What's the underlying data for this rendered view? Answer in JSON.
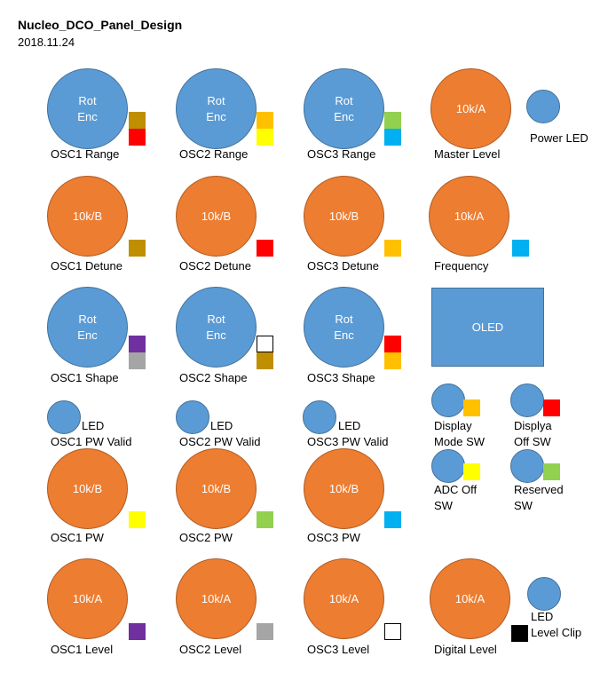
{
  "header": {
    "title": "Nucleo_DCO_Panel_Design",
    "date": "2018.11.24"
  },
  "colors": {
    "gold": "#bf8f00",
    "red": "#ff0000",
    "orange_sq": "#ffc000",
    "yellow": "#ffff00",
    "green": "#92d050",
    "cyan": "#00b0f0",
    "purple": "#7030a0",
    "gray": "#a5a5a5",
    "white": "#ffffff",
    "black": "#000000",
    "knob_blue": "#5b9bd5",
    "knob_orange": "#ed7d31"
  },
  "rows": {
    "range": {
      "osc1": {
        "knob": "Rot\nEnc",
        "label": "OSC1  Range"
      },
      "osc2": {
        "knob": "Rot\nEnc",
        "label": "OSC2  Range"
      },
      "osc3": {
        "knob": "Rot\nEnc",
        "label": "OSC3  Range"
      },
      "master": {
        "knob": "10k/A",
        "label": "Master Level"
      },
      "power_led": {
        "label": "Power LED"
      }
    },
    "detune": {
      "osc1": {
        "knob": "10k/B",
        "label": "OSC1  Detune"
      },
      "osc2": {
        "knob": "10k/B",
        "label": "OSC2  Detune"
      },
      "osc3": {
        "knob": "10k/B",
        "label": "OSC3  Detune"
      },
      "frequency": {
        "knob": "10k/A",
        "label": "Frequency"
      }
    },
    "shape": {
      "osc1": {
        "knob": "Rot\nEnc",
        "label": "OSC1  Shape"
      },
      "osc2": {
        "knob": "Rot\nEnc",
        "label": "OSC2  Shape"
      },
      "osc3": {
        "knob": "Rot\nEnc",
        "label": "OSC3  Shape"
      },
      "oled": {
        "label": "OLED"
      }
    },
    "pw_valid": {
      "osc1": {
        "led": "LED",
        "label": "OSC1  PW Valid"
      },
      "osc2": {
        "led": "LED",
        "label": "OSC2  PW Valid"
      },
      "osc3": {
        "led": "LED",
        "label": "OSC3  PW Valid"
      }
    },
    "switches": {
      "display_mode": {
        "line1": "Display",
        "line2": "Mode SW"
      },
      "display_off": {
        "line1": "Displya",
        "line2": "Off SW"
      },
      "adc_off": {
        "line1": "ADC  Off",
        "line2": "SW"
      },
      "reserved": {
        "line1": "Reserved",
        "line2": "SW"
      }
    },
    "pw": {
      "osc1": {
        "knob": "10k/B",
        "label": "OSC1  PW"
      },
      "osc2": {
        "knob": "10k/B",
        "label": "OSC2  PW"
      },
      "osc3": {
        "knob": "10k/B",
        "label": "OSC3  PW"
      }
    },
    "level": {
      "osc1": {
        "knob": "10k/A",
        "label": "OSC1  Level"
      },
      "osc2": {
        "knob": "10k/A",
        "label": "OSC2  Level"
      },
      "osc3": {
        "knob": "10k/A",
        "label": "OSC3  Level"
      },
      "digital": {
        "knob": "10k/A",
        "label": "Digital Level"
      },
      "clip_led": {
        "line1": "LED",
        "line2": "Level Clip"
      }
    }
  }
}
